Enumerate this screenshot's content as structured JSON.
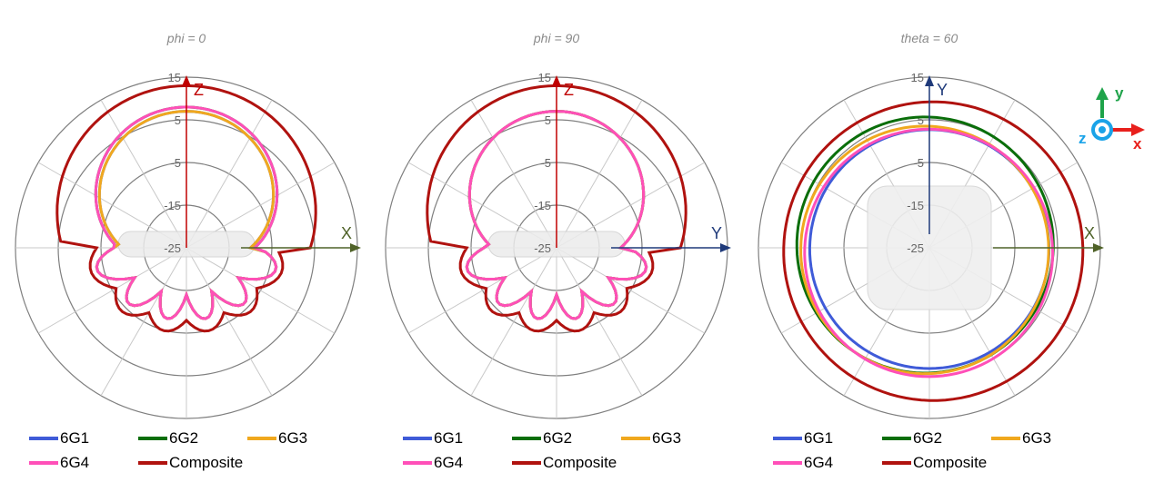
{
  "chart_data": [
    {
      "type": "polar-line",
      "title": "phi = 0",
      "radial_ticks": [
        "15",
        "5",
        "-5",
        "-15",
        "-25"
      ],
      "rlim": [
        -25,
        15
      ],
      "axes": {
        "vertical": "Z",
        "horizontal": "X",
        "vertical_color": "#c00000",
        "horizontal_color": "#4f6228"
      },
      "series": [
        {
          "name": "6G1",
          "color": "#3f5bd8",
          "peak_dB": 7
        },
        {
          "name": "6G2",
          "color": "#0a6e0a",
          "peak_dB": 8
        },
        {
          "name": "6G3",
          "color": "#f0a81e",
          "peak_dB": 7
        },
        {
          "name": "6G4",
          "color": "#ff4fb8",
          "peak_dB": 8
        },
        {
          "name": "Composite",
          "color": "#b0120f",
          "peak_dB": 13
        }
      ]
    },
    {
      "type": "polar-line",
      "title": "phi = 90",
      "radial_ticks": [
        "15",
        "5",
        "-5",
        "-15",
        "-25"
      ],
      "rlim": [
        -25,
        15
      ],
      "axes": {
        "vertical": "Z",
        "horizontal": "Y",
        "vertical_color": "#c00000",
        "horizontal_color": "#1f3a7a"
      },
      "series": [
        {
          "name": "6G1",
          "color": "#3f5bd8",
          "peak_dB": 7
        },
        {
          "name": "6G2",
          "color": "#0a6e0a",
          "peak_dB": 7
        },
        {
          "name": "6G3",
          "color": "#f0a81e",
          "peak_dB": 7
        },
        {
          "name": "6G4",
          "color": "#ff4fb8",
          "peak_dB": 7
        },
        {
          "name": "Composite",
          "color": "#b0120f",
          "peak_dB": 13
        }
      ]
    },
    {
      "type": "polar-line",
      "title": "theta = 60",
      "radial_ticks": [
        "15",
        "5",
        "-5",
        "-15",
        "-25"
      ],
      "rlim": [
        -25,
        15
      ],
      "axes": {
        "vertical": "Y",
        "horizontal": "X",
        "vertical_color": "#1f3a7a",
        "horizontal_color": "#4f6228"
      },
      "series": [
        {
          "name": "6G1",
          "color": "#3f5bd8",
          "approx_dB": 3
        },
        {
          "name": "6G2",
          "color": "#0a6e0a",
          "approx_dB": 5
        },
        {
          "name": "6G3",
          "color": "#f0a81e",
          "approx_dB": 4
        },
        {
          "name": "6G4",
          "color": "#ff4fb8",
          "approx_dB": 4
        },
        {
          "name": "Composite",
          "color": "#b0120f",
          "approx_dB": 10
        }
      ]
    }
  ],
  "legend": [
    {
      "name": "6G1",
      "color": "#3f5bd8"
    },
    {
      "name": "6G2",
      "color": "#0a6e0a"
    },
    {
      "name": "6G3",
      "color": "#f0a81e"
    },
    {
      "name": "6G4",
      "color": "#ff4fb8"
    },
    {
      "name": "Composite",
      "color": "#b0120f"
    }
  ],
  "coordinate_icon": {
    "x": "x",
    "y": "y",
    "z": "z"
  }
}
